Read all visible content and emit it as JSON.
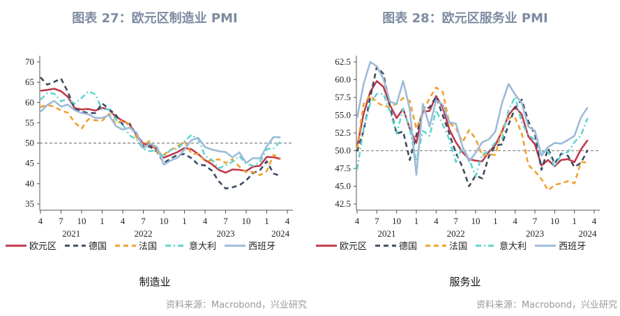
{
  "chart_data": [
    {
      "type": "line",
      "title": "图表 27：欧元区制造业 PMI",
      "subtitle": "制造业",
      "source": "资料来源：Macrobond，兴业研究",
      "ylim": [
        35,
        70
      ],
      "yticks": [
        "35",
        "40",
        "45",
        "50",
        "55",
        "60",
        "65",
        "70"
      ],
      "xtick_labels": [
        "4",
        "7",
        "10",
        "1",
        "4",
        "7",
        "10",
        "1",
        "4",
        "7",
        "10",
        "1",
        "4"
      ],
      "year_labels": [
        "2021",
        "2022",
        "2023",
        "2024"
      ],
      "x_start": "2021-04",
      "x_end": "2024-04",
      "reference_line": 50,
      "series": [
        {
          "name": "欧元区",
          "color": "#c0394b",
          "style": "solid",
          "values": [
            62.9,
            63.1,
            63.4,
            62.8,
            61.4,
            58.6,
            58.3,
            58.4,
            58.0,
            58.7,
            58.2,
            56.5,
            55.5,
            54.6,
            52.1,
            49.8,
            49.6,
            48.4,
            46.4,
            47.1,
            47.8,
            48.8,
            48.5,
            47.3,
            45.8,
            44.8,
            43.4,
            42.7,
            43.5,
            43.4,
            43.1,
            44.2,
            44.4,
            46.6,
            46.5,
            46.1
          ]
        },
        {
          "name": "德国",
          "color": "#3d4a63",
          "style": "dash",
          "values": [
            66.2,
            64.4,
            65.1,
            65.9,
            62.6,
            58.4,
            57.8,
            57.4,
            57.4,
            59.8,
            58.4,
            56.9,
            54.6,
            54.8,
            52.0,
            49.3,
            49.1,
            47.8,
            45.1,
            46.2,
            47.1,
            47.3,
            46.3,
            44.7,
            44.5,
            43.2,
            40.6,
            38.8,
            39.1,
            39.6,
            40.8,
            42.6,
            43.3,
            45.5,
            42.5,
            41.9
          ]
        },
        {
          "name": "法国",
          "color": "#f0a030",
          "style": "dash",
          "values": [
            58.9,
            59.4,
            59.0,
            58.0,
            57.5,
            55.0,
            53.6,
            55.9,
            55.6,
            55.5,
            57.2,
            54.7,
            55.7,
            54.6,
            51.4,
            49.5,
            50.6,
            47.7,
            47.2,
            48.3,
            49.2,
            50.5,
            47.4,
            47.3,
            45.6,
            45.7,
            46.0,
            45.1,
            46.0,
            44.2,
            42.8,
            42.9,
            42.1,
            43.1,
            47.1,
            46.2
          ]
        },
        {
          "name": "意大利",
          "color": "#5fd6cf",
          "style": "dashdot",
          "values": [
            60.7,
            62.3,
            62.2,
            60.3,
            60.9,
            59.7,
            61.1,
            62.8,
            62.0,
            58.3,
            58.3,
            55.8,
            54.5,
            51.9,
            50.9,
            48.5,
            48.0,
            48.3,
            46.5,
            48.4,
            48.5,
            50.4,
            52.0,
            51.1,
            46.8,
            45.9,
            43.8,
            44.5,
            45.4,
            46.8,
            44.9,
            44.4,
            45.3,
            48.5,
            48.7,
            50.4
          ]
        },
        {
          "name": "西班牙",
          "color": "#9dbbd9",
          "style": "solid",
          "values": [
            57.7,
            59.4,
            60.4,
            59.0,
            59.5,
            58.1,
            57.4,
            57.1,
            56.2,
            56.2,
            56.9,
            54.2,
            53.3,
            53.8,
            52.6,
            48.7,
            49.9,
            49.0,
            44.7,
            45.7,
            46.4,
            48.4,
            50.7,
            51.3,
            49.0,
            48.4,
            48.0,
            47.8,
            46.5,
            47.7,
            45.1,
            46.3,
            46.2,
            49.2,
            51.5,
            51.4
          ]
        }
      ]
    },
    {
      "type": "line",
      "title": "图表 28：欧元区服务业 PMI",
      "subtitle": "服务业",
      "source": "资料来源：Macrobond，兴业研究",
      "ylim": [
        42.5,
        62.5
      ],
      "yticks": [
        "42.5",
        "45.0",
        "47.5",
        "50.0",
        "52.5",
        "55.0",
        "57.5",
        "60.0",
        "62.5"
      ],
      "xtick_labels": [
        "4",
        "7",
        "10",
        "1",
        "4",
        "7",
        "10",
        "1",
        "4",
        "7",
        "10",
        "1",
        "4"
      ],
      "year_labels": [
        "2021",
        "2022",
        "2023",
        "2024"
      ],
      "x_start": "2021-04",
      "x_end": "2024-04",
      "reference_line": 50,
      "series": [
        {
          "name": "欧元区",
          "color": "#c0394b",
          "style": "solid",
          "values": [
            50.5,
            55.2,
            58.3,
            59.8,
            59.0,
            56.4,
            54.6,
            55.9,
            53.1,
            51.1,
            55.5,
            55.6,
            57.7,
            56.1,
            53.0,
            51.2,
            49.8,
            48.8,
            48.6,
            48.5,
            49.8,
            50.8,
            52.7,
            55.0,
            56.2,
            55.1,
            52.0,
            50.9,
            47.9,
            48.7,
            47.8,
            48.7,
            48.8,
            48.4,
            50.2,
            51.5
          ]
        },
        {
          "name": "德国",
          "color": "#3d4a63",
          "style": "dash",
          "values": [
            49.9,
            52.8,
            57.5,
            61.8,
            60.8,
            56.2,
            52.4,
            52.7,
            48.7,
            52.2,
            55.8,
            56.1,
            57.6,
            55.0,
            52.4,
            49.7,
            47.7,
            45.0,
            46.5,
            46.1,
            49.2,
            50.7,
            50.9,
            53.7,
            56.0,
            57.2,
            54.1,
            52.3,
            47.3,
            50.3,
            48.2,
            49.6,
            49.3,
            47.7,
            48.3,
            50.1
          ]
        },
        {
          "name": "法国",
          "color": "#f0a030",
          "style": "dash",
          "values": [
            50.3,
            56.6,
            57.8,
            56.8,
            56.3,
            56.2,
            56.6,
            57.4,
            57.0,
            53.1,
            55.5,
            57.4,
            58.9,
            58.3,
            53.9,
            53.2,
            51.2,
            52.9,
            51.7,
            49.3,
            49.5,
            49.4,
            53.1,
            54.6,
            54.6,
            52.5,
            48.0,
            47.1,
            46.0,
            44.4,
            45.2,
            45.4,
            45.7,
            45.4,
            48.4,
            48.3
          ]
        },
        {
          "name": "意大利",
          "color": "#5fd6cf",
          "style": "dashdot",
          "values": [
            47.3,
            53.1,
            56.7,
            58.0,
            58.0,
            55.5,
            52.4,
            55.9,
            53.0,
            48.5,
            52.8,
            52.1,
            55.7,
            53.7,
            51.6,
            48.4,
            50.5,
            48.8,
            46.4,
            49.5,
            49.9,
            51.2,
            51.6,
            55.7,
            57.6,
            54.0,
            52.2,
            51.5,
            49.8,
            49.9,
            47.7,
            49.5,
            49.8,
            51.2,
            52.2,
            54.6
          ]
        },
        {
          "name": "西班牙",
          "color": "#9dbbd9",
          "style": "solid",
          "values": [
            54.6,
            59.4,
            62.5,
            61.9,
            60.1,
            56.9,
            56.6,
            59.8,
            55.8,
            46.6,
            56.6,
            53.4,
            57.1,
            56.5,
            54.0,
            53.8,
            50.6,
            48.5,
            49.7,
            51.2,
            51.6,
            52.7,
            56.7,
            59.4,
            57.9,
            56.7,
            53.4,
            52.8,
            49.3,
            50.5,
            51.1,
            51.0,
            51.5,
            52.1,
            54.7,
            56.1
          ]
        }
      ]
    }
  ]
}
